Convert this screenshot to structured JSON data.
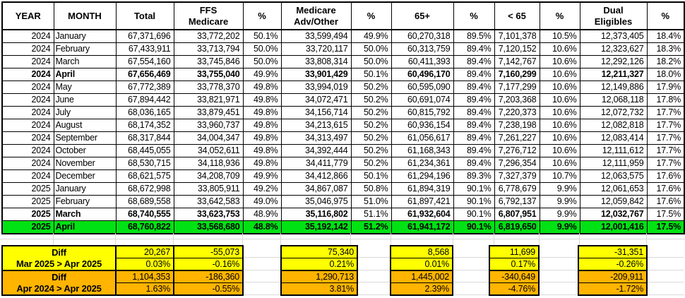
{
  "table": {
    "columns": [
      {
        "key": "year",
        "label": "YEAR"
      },
      {
        "key": "month",
        "label": "MONTH"
      },
      {
        "key": "total",
        "label": "Total"
      },
      {
        "key": "ffs",
        "label": "FFS\nMedicare"
      },
      {
        "key": "ffs_pct",
        "label": "%"
      },
      {
        "key": "adv",
        "label": "Medicare\nAdv/Other"
      },
      {
        "key": "adv_pct",
        "label": "%"
      },
      {
        "key": "over65",
        "label": "65+"
      },
      {
        "key": "over65_pct",
        "label": "%"
      },
      {
        "key": "under65",
        "label": "< 65"
      },
      {
        "key": "under65_pct",
        "label": "%"
      },
      {
        "key": "dual",
        "label": "Dual\nEligibles"
      },
      {
        "key": "dual_pct",
        "label": "%"
      }
    ],
    "rows": [
      [
        "2024",
        "January",
        "67,371,696",
        "33,772,202",
        "50.1%",
        "33,599,494",
        "49.9%",
        "60,270,318",
        "89.5%",
        "7,101,378",
        "10.5%",
        "12,373,405",
        "18.4%"
      ],
      [
        "2024",
        "February",
        "67,433,911",
        "33,713,794",
        "50.0%",
        "33,720,117",
        "50.0%",
        "60,313,759",
        "89.4%",
        "7,120,152",
        "10.6%",
        "12,323,627",
        "18.3%"
      ],
      [
        "2024",
        "March",
        "67,554,160",
        "33,745,846",
        "50.0%",
        "33,808,314",
        "50.0%",
        "60,411,393",
        "89.4%",
        "7,142,767",
        "10.6%",
        "12,292,126",
        "18.2%"
      ],
      [
        "2024",
        "April",
        "67,656,469",
        "33,755,040",
        "49.9%",
        "33,901,429",
        "50.1%",
        "60,496,170",
        "89.4%",
        "7,160,299",
        "10.6%",
        "12,211,327",
        "18.0%"
      ],
      [
        "2024",
        "May",
        "67,772,389",
        "33,778,370",
        "49.8%",
        "33,994,019",
        "50.2%",
        "60,595,090",
        "89.4%",
        "7,177,299",
        "10.6%",
        "12,149,886",
        "17.9%"
      ],
      [
        "2024",
        "June",
        "67,894,442",
        "33,821,971",
        "49.8%",
        "34,072,471",
        "50.2%",
        "60,691,074",
        "89.4%",
        "7,203,368",
        "10.6%",
        "12,068,118",
        "17.8%"
      ],
      [
        "2024",
        "July",
        "68,036,165",
        "33,879,451",
        "49.8%",
        "34,156,714",
        "50.2%",
        "60,815,792",
        "89.4%",
        "7,220,373",
        "10.6%",
        "12,072,732",
        "17.7%"
      ],
      [
        "2024",
        "August",
        "68,174,352",
        "33,960,737",
        "49.8%",
        "34,213,615",
        "50.2%",
        "60,936,154",
        "89.4%",
        "7,238,198",
        "10.6%",
        "12,082,818",
        "17.7%"
      ],
      [
        "2024",
        "September",
        "68,317,844",
        "34,004,347",
        "49.8%",
        "34,313,497",
        "50.2%",
        "61,056,617",
        "89.4%",
        "7,261,227",
        "10.6%",
        "12,083,414",
        "17.7%"
      ],
      [
        "2024",
        "October",
        "68,445,055",
        "34,052,611",
        "49.8%",
        "34,392,444",
        "50.2%",
        "61,168,343",
        "89.4%",
        "7,276,712",
        "10.6%",
        "12,111,612",
        "17.7%"
      ],
      [
        "2024",
        "November",
        "68,530,715",
        "34,118,936",
        "49.8%",
        "34,411,779",
        "50.2%",
        "61,234,361",
        "89.4%",
        "7,296,354",
        "10.6%",
        "12,111,959",
        "17.7%"
      ],
      [
        "2024",
        "December",
        "68,621,575",
        "34,208,709",
        "49.9%",
        "34,412,866",
        "50.1%",
        "61,294,196",
        "89.3%",
        "7,327,379",
        "10.7%",
        "12,063,575",
        "17.6%"
      ],
      [
        "2025",
        "January",
        "68,672,998",
        "33,805,911",
        "49.2%",
        "34,867,087",
        "50.8%",
        "61,894,319",
        "90.1%",
        "6,778,679",
        "9.9%",
        "12,061,653",
        "17.6%"
      ],
      [
        "2025",
        "February",
        "68,689,558",
        "33,642,583",
        "49.0%",
        "35,046,975",
        "51.0%",
        "61,897,421",
        "90.1%",
        "6,792,137",
        "9.9%",
        "12,059,842",
        "17.6%"
      ],
      [
        "2025",
        "March",
        "68,740,555",
        "33,623,753",
        "48.9%",
        "35,116,802",
        "51.1%",
        "61,932,604",
        "90.1%",
        "6,807,951",
        "9.9%",
        "12,032,767",
        "17.5%"
      ],
      [
        "2025",
        "April",
        "68,760,822",
        "33,568,680",
        "48.8%",
        "35,192,142",
        "51.2%",
        "61,941,172",
        "90.1%",
        "6,819,650",
        "9.9%",
        "12,001,416",
        "17.5%"
      ]
    ],
    "bold_row_indexes": [
      3,
      14,
      15
    ],
    "highlight_row_index": 15,
    "highlight_color": "#00e213"
  },
  "summary": {
    "groups": [
      {
        "label_title": "Diff",
        "label_range": "Mar 2025 > Apr 2025",
        "fill_color": "#ffff00",
        "values": [
          "20,267",
          "-55,073",
          "75,340",
          "8,568",
          "11,699",
          "-31,351"
        ],
        "percents": [
          "0.03%",
          "-0.16%",
          "0.21%",
          "0.01%",
          "0.17%",
          "-0.26%"
        ]
      },
      {
        "label_title": "Diff",
        "label_range": "Apr 2024 > Apr 2025",
        "fill_color": "#ffb400",
        "values": [
          "1,104,353",
          "-186,360",
          "1,290,713",
          "1,445,002",
          "-340,649",
          "-209,911"
        ],
        "percents": [
          "1.63%",
          "-0.55%",
          "3.81%",
          "2.39%",
          "-4.76%",
          "-1.72%"
        ]
      }
    ]
  },
  "colors": {
    "border": "#000000",
    "gridline": "#d9d9d9"
  }
}
